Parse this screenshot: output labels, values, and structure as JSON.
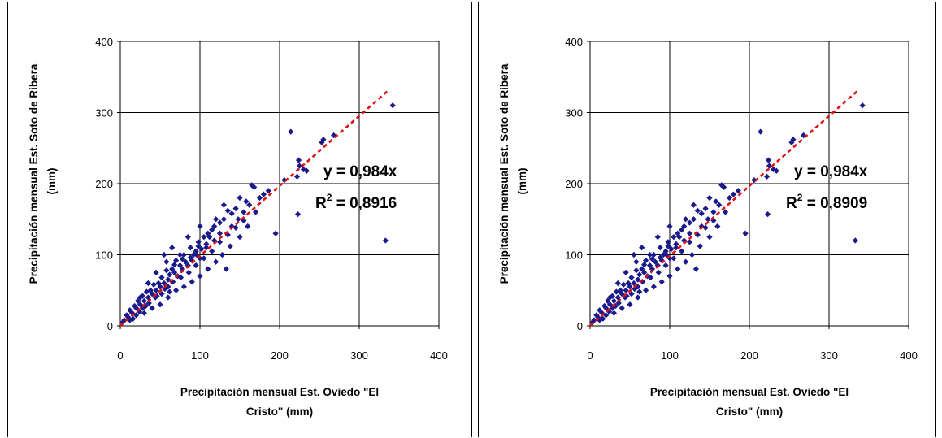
{
  "chart_data": [
    {
      "type": "scatter",
      "title": "",
      "xlabel_line1": "Precipitación mensual Est. Oviedo \"El",
      "xlabel_line2": "Cristo\" (mm)",
      "ylabel_line1": "Precipitación mensual Est. Soto de Ribera",
      "ylabel_line2": "(mm)",
      "xlim": [
        0,
        400
      ],
      "ylim": [
        0,
        400
      ],
      "xticks": [
        "0",
        "100",
        "200",
        "300",
        "400"
      ],
      "yticks": [
        "0",
        "100",
        "200",
        "300",
        "400"
      ],
      "grid": true,
      "series_color": "#1a1a8c",
      "trendline": {
        "slope": 0.984,
        "x_range": [
          0,
          336
        ],
        "color": "#e01010",
        "style": "dashed"
      },
      "equation": "y = 0,984x",
      "r2_label": "R",
      "r2_sup": "2",
      "r2_value": " = 0,8916",
      "points": [
        [
          342,
          310
        ],
        [
          333,
          120
        ],
        [
          268,
          268
        ],
        [
          255,
          262
        ],
        [
          253,
          258
        ],
        [
          230,
          220
        ],
        [
          224,
          233
        ],
        [
          225,
          225
        ],
        [
          234,
          218
        ],
        [
          222,
          210
        ],
        [
          214,
          273
        ],
        [
          223,
          157
        ],
        [
          195,
          130
        ],
        [
          206,
          205
        ],
        [
          186,
          190
        ],
        [
          180,
          185
        ],
        [
          175,
          180
        ],
        [
          165,
          198
        ],
        [
          168,
          195
        ],
        [
          170,
          160
        ],
        [
          162,
          170
        ],
        [
          158,
          175
        ],
        [
          150,
          180
        ],
        [
          155,
          160
        ],
        [
          145,
          165
        ],
        [
          148,
          150
        ],
        [
          140,
          158
        ],
        [
          135,
          162
        ],
        [
          133,
          80
        ],
        [
          140,
          140
        ],
        [
          130,
          150
        ],
        [
          125,
          145
        ],
        [
          120,
          150
        ],
        [
          125,
          130
        ],
        [
          115,
          135
        ],
        [
          110,
          130
        ],
        [
          118,
          120
        ],
        [
          105,
          125
        ],
        [
          100,
          140
        ],
        [
          108,
          110
        ],
        [
          98,
          118
        ],
        [
          95,
          105
        ],
        [
          100,
          95
        ],
        [
          92,
          100
        ],
        [
          88,
          96
        ],
        [
          85,
          125
        ],
        [
          82,
          90
        ],
        [
          80,
          100
        ],
        [
          78,
          80
        ],
        [
          75,
          85
        ],
        [
          70,
          92
        ],
        [
          72,
          70
        ],
        [
          68,
          75
        ],
        [
          65,
          80
        ],
        [
          62,
          72
        ],
        [
          60,
          65
        ],
        [
          58,
          90
        ],
        [
          55,
          60
        ],
        [
          52,
          68
        ],
        [
          50,
          55
        ],
        [
          48,
          60
        ],
        [
          45,
          50
        ],
        [
          42,
          58
        ],
        [
          40,
          45
        ],
        [
          38,
          50
        ],
        [
          35,
          40
        ],
        [
          33,
          48
        ],
        [
          30,
          35
        ],
        [
          28,
          42
        ],
        [
          25,
          30
        ],
        [
          22,
          35
        ],
        [
          20,
          25
        ],
        [
          18,
          28
        ],
        [
          15,
          18
        ],
        [
          12,
          22
        ],
        [
          10,
          12
        ],
        [
          8,
          15
        ],
        [
          5,
          8
        ],
        [
          3,
          5
        ],
        [
          50,
          30
        ],
        [
          60,
          40
        ],
        [
          70,
          50
        ],
        [
          90,
          62
        ],
        [
          110,
          80
        ],
        [
          120,
          90
        ],
        [
          100,
          70
        ],
        [
          80,
          55
        ],
        [
          40,
          25
        ],
        [
          30,
          18
        ],
        [
          25,
          40
        ],
        [
          35,
          60
        ],
        [
          45,
          75
        ],
        [
          55,
          100
        ],
        [
          65,
          110
        ],
        [
          75,
          100
        ],
        [
          95,
          85
        ],
        [
          105,
          95
        ],
        [
          115,
          105
        ],
        [
          125,
          118
        ],
        [
          135,
          128
        ],
        [
          145,
          138
        ],
        [
          155,
          148
        ],
        [
          128,
          100
        ],
        [
          138,
          112
        ],
        [
          150,
          125
        ],
        [
          160,
          140
        ],
        [
          112,
          125
        ],
        [
          118,
          140
        ],
        [
          130,
          170
        ],
        [
          60,
          55
        ],
        [
          62,
          48
        ],
        [
          52,
          45
        ],
        [
          44,
          40
        ],
        [
          36,
          32
        ],
        [
          28,
          25
        ],
        [
          20,
          15
        ],
        [
          16,
          10
        ],
        [
          12,
          8
        ],
        [
          85,
          85
        ],
        [
          90,
          92
        ],
        [
          96,
          100
        ],
        [
          102,
          108
        ],
        [
          108,
          115
        ],
        [
          86,
          75
        ],
        [
          76,
          68
        ],
        [
          66,
          62
        ],
        [
          56,
          52
        ],
        [
          46,
          42
        ],
        [
          58,
          78
        ],
        [
          68,
          86
        ],
        [
          78,
          94
        ],
        [
          88,
          110
        ],
        [
          98,
          112
        ],
        [
          32,
          28
        ],
        [
          24,
          20
        ]
      ]
    },
    {
      "type": "scatter",
      "title": "",
      "xlabel_line1": "Precipitación mensual Est. Oviedo \"El",
      "xlabel_line2": "Cristo\" (mm)",
      "ylabel_line1": "Precipitación mensual Est. Soto de Ribera",
      "ylabel_line2": "(mm)",
      "xlim": [
        0,
        400
      ],
      "ylim": [
        0,
        400
      ],
      "xticks": [
        "0",
        "100",
        "200",
        "300",
        "400"
      ],
      "yticks": [
        "0",
        "100",
        "200",
        "300",
        "400"
      ],
      "grid": true,
      "series_color": "#1a1a8c",
      "trendline": {
        "slope": 0.984,
        "x_range": [
          0,
          336
        ],
        "color": "#e01010",
        "style": "dashed"
      },
      "equation": "y = 0,984x",
      "r2_label": "R",
      "r2_sup": "2",
      "r2_value": " = 0,8909",
      "points": [
        [
          342,
          310
        ],
        [
          333,
          120
        ],
        [
          268,
          268
        ],
        [
          255,
          262
        ],
        [
          253,
          258
        ],
        [
          230,
          220
        ],
        [
          224,
          233
        ],
        [
          225,
          225
        ],
        [
          234,
          218
        ],
        [
          222,
          210
        ],
        [
          214,
          273
        ],
        [
          223,
          157
        ],
        [
          195,
          130
        ],
        [
          206,
          205
        ],
        [
          186,
          190
        ],
        [
          180,
          185
        ],
        [
          175,
          180
        ],
        [
          165,
          198
        ],
        [
          168,
          195
        ],
        [
          170,
          160
        ],
        [
          162,
          170
        ],
        [
          158,
          175
        ],
        [
          150,
          180
        ],
        [
          155,
          160
        ],
        [
          145,
          165
        ],
        [
          148,
          150
        ],
        [
          140,
          158
        ],
        [
          135,
          162
        ],
        [
          133,
          80
        ],
        [
          140,
          140
        ],
        [
          130,
          150
        ],
        [
          125,
          145
        ],
        [
          120,
          150
        ],
        [
          125,
          130
        ],
        [
          115,
          135
        ],
        [
          110,
          130
        ],
        [
          118,
          120
        ],
        [
          105,
          125
        ],
        [
          100,
          140
        ],
        [
          108,
          110
        ],
        [
          98,
          118
        ],
        [
          95,
          105
        ],
        [
          100,
          95
        ],
        [
          92,
          100
        ],
        [
          88,
          96
        ],
        [
          85,
          125
        ],
        [
          82,
          90
        ],
        [
          80,
          100
        ],
        [
          78,
          80
        ],
        [
          75,
          85
        ],
        [
          70,
          92
        ],
        [
          72,
          70
        ],
        [
          68,
          75
        ],
        [
          65,
          80
        ],
        [
          62,
          72
        ],
        [
          60,
          65
        ],
        [
          58,
          90
        ],
        [
          55,
          60
        ],
        [
          52,
          68
        ],
        [
          50,
          55
        ],
        [
          48,
          60
        ],
        [
          45,
          50
        ],
        [
          42,
          58
        ],
        [
          40,
          45
        ],
        [
          38,
          50
        ],
        [
          35,
          40
        ],
        [
          33,
          48
        ],
        [
          30,
          35
        ],
        [
          28,
          42
        ],
        [
          25,
          30
        ],
        [
          22,
          35
        ],
        [
          20,
          25
        ],
        [
          18,
          28
        ],
        [
          15,
          18
        ],
        [
          12,
          22
        ],
        [
          10,
          12
        ],
        [
          8,
          15
        ],
        [
          5,
          8
        ],
        [
          3,
          5
        ],
        [
          50,
          30
        ],
        [
          60,
          40
        ],
        [
          70,
          50
        ],
        [
          90,
          62
        ],
        [
          110,
          80
        ],
        [
          120,
          90
        ],
        [
          100,
          70
        ],
        [
          80,
          55
        ],
        [
          40,
          25
        ],
        [
          30,
          18
        ],
        [
          25,
          40
        ],
        [
          35,
          60
        ],
        [
          45,
          75
        ],
        [
          55,
          100
        ],
        [
          65,
          110
        ],
        [
          75,
          100
        ],
        [
          95,
          85
        ],
        [
          105,
          95
        ],
        [
          115,
          105
        ],
        [
          125,
          118
        ],
        [
          135,
          128
        ],
        [
          145,
          138
        ],
        [
          155,
          148
        ],
        [
          128,
          100
        ],
        [
          138,
          112
        ],
        [
          150,
          125
        ],
        [
          160,
          140
        ],
        [
          112,
          125
        ],
        [
          118,
          140
        ],
        [
          130,
          170
        ],
        [
          60,
          55
        ],
        [
          62,
          48
        ],
        [
          52,
          45
        ],
        [
          44,
          40
        ],
        [
          36,
          32
        ],
        [
          28,
          25
        ],
        [
          20,
          15
        ],
        [
          16,
          10
        ],
        [
          12,
          8
        ],
        [
          85,
          85
        ],
        [
          90,
          92
        ],
        [
          96,
          100
        ],
        [
          102,
          108
        ],
        [
          108,
          115
        ],
        [
          86,
          75
        ],
        [
          76,
          68
        ],
        [
          66,
          62
        ],
        [
          56,
          52
        ],
        [
          46,
          42
        ],
        [
          58,
          78
        ],
        [
          68,
          86
        ],
        [
          78,
          94
        ],
        [
          88,
          110
        ],
        [
          98,
          112
        ],
        [
          32,
          28
        ],
        [
          24,
          20
        ]
      ]
    }
  ]
}
